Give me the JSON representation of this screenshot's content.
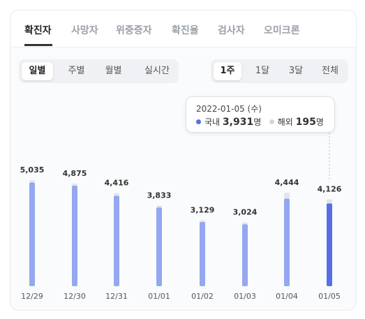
{
  "tabs": [
    "확진자",
    "사망자",
    "위중증자",
    "확진율",
    "검사자",
    "오미크론"
  ],
  "period_tabs": [
    "일별",
    "주별",
    "월별",
    "실시간"
  ],
  "range_tabs": [
    "1주",
    "1달",
    "3달",
    "전체"
  ],
  "tooltip": {
    "date": "2022-01-05 (수)",
    "domestic_label": "국내",
    "domestic_value": "3,931",
    "overseas_label": "해외",
    "overseas_value": "195",
    "unit": "명"
  },
  "colors": {
    "domestic_bar": "#94a7f0",
    "selected_bar": "#5670e3",
    "overseas_bar": "#e3e5ea",
    "guide": "#b8bcc4"
  },
  "chart_data": {
    "type": "bar",
    "stacked": true,
    "categories": [
      "12/29",
      "12/30",
      "12/31",
      "01/01",
      "01/02",
      "01/03",
      "01/04",
      "01/05"
    ],
    "totals": [
      "5,035",
      "4,875",
      "4,416",
      "3,833",
      "3,129",
      "3,024",
      "4,444",
      "4,126"
    ],
    "series": [
      {
        "name": "국내",
        "values": [
          4920,
          4770,
          4300,
          3740,
          3050,
          2940,
          4160,
          3931
        ]
      },
      {
        "name": "해외",
        "values": [
          115,
          105,
          116,
          93,
          79,
          84,
          284,
          195
        ]
      }
    ],
    "selected_index": 7,
    "ylim": [
      0,
      5600
    ]
  }
}
